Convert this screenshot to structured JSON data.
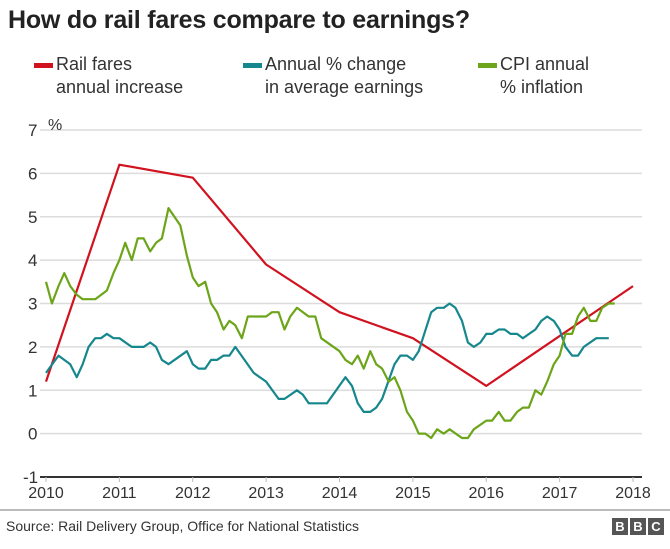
{
  "chart_data": {
    "type": "line",
    "title": "How do rail fares compare to earnings?",
    "ylabel": "%",
    "xlabel": "",
    "ylim": [
      -1,
      7
    ],
    "xlim": [
      2010,
      2018
    ],
    "yticks": [
      "-1",
      "0",
      "1",
      "2",
      "3",
      "4",
      "5",
      "6",
      "7"
    ],
    "xticks": [
      "2010",
      "2011",
      "2012",
      "2013",
      "2014",
      "2015",
      "2016",
      "2017",
      "2018"
    ],
    "grid": true,
    "legend_position": "top",
    "series": [
      {
        "name": "Rail fares\nannual increase",
        "color": "#d1121f",
        "points": [
          [
            2010.0,
            1.2
          ],
          [
            2011.0,
            6.2
          ],
          [
            2012.0,
            5.9
          ],
          [
            2013.0,
            3.9
          ],
          [
            2014.0,
            2.8
          ],
          [
            2015.0,
            2.2
          ],
          [
            2016.0,
            1.1
          ],
          [
            2018.0,
            3.4
          ]
        ]
      },
      {
        "name": "Annual % change\nin average earnings",
        "color": "#16878c",
        "points": [
          [
            2010.0,
            1.4
          ],
          [
            2010.17,
            1.8
          ],
          [
            2010.33,
            1.6
          ],
          [
            2010.42,
            1.3
          ],
          [
            2010.5,
            1.6
          ],
          [
            2010.58,
            2.0
          ],
          [
            2010.67,
            2.2
          ],
          [
            2010.75,
            2.2
          ],
          [
            2010.83,
            2.3
          ],
          [
            2010.92,
            2.2
          ],
          [
            2011.0,
            2.2
          ],
          [
            2011.17,
            2.0
          ],
          [
            2011.33,
            2.0
          ],
          [
            2011.42,
            2.1
          ],
          [
            2011.5,
            2.0
          ],
          [
            2011.58,
            1.7
          ],
          [
            2011.67,
            1.6
          ],
          [
            2011.92,
            1.9
          ],
          [
            2012.0,
            1.6
          ],
          [
            2012.08,
            1.5
          ],
          [
            2012.17,
            1.5
          ],
          [
            2012.25,
            1.7
          ],
          [
            2012.33,
            1.7
          ],
          [
            2012.42,
            1.8
          ],
          [
            2012.5,
            1.8
          ],
          [
            2012.58,
            2.0
          ],
          [
            2012.83,
            1.4
          ],
          [
            2013.0,
            1.2
          ],
          [
            2013.17,
            0.8
          ],
          [
            2013.25,
            0.8
          ],
          [
            2013.42,
            1.0
          ],
          [
            2013.5,
            0.9
          ],
          [
            2013.58,
            0.7
          ],
          [
            2013.83,
            0.7
          ],
          [
            2014.08,
            1.3
          ],
          [
            2014.17,
            1.1
          ],
          [
            2014.25,
            0.7
          ],
          [
            2014.33,
            0.5
          ],
          [
            2014.42,
            0.5
          ],
          [
            2014.5,
            0.6
          ],
          [
            2014.58,
            0.8
          ],
          [
            2014.75,
            1.6
          ],
          [
            2014.83,
            1.8
          ],
          [
            2014.92,
            1.8
          ],
          [
            2015.0,
            1.7
          ],
          [
            2015.08,
            1.9
          ],
          [
            2015.25,
            2.8
          ],
          [
            2015.33,
            2.9
          ],
          [
            2015.42,
            2.9
          ],
          [
            2015.5,
            3.0
          ],
          [
            2015.58,
            2.9
          ],
          [
            2015.67,
            2.6
          ],
          [
            2015.75,
            2.1
          ],
          [
            2015.83,
            2.0
          ],
          [
            2015.92,
            2.1
          ],
          [
            2016.0,
            2.3
          ],
          [
            2016.08,
            2.3
          ],
          [
            2016.17,
            2.4
          ],
          [
            2016.25,
            2.4
          ],
          [
            2016.33,
            2.3
          ],
          [
            2016.42,
            2.3
          ],
          [
            2016.5,
            2.2
          ],
          [
            2016.67,
            2.4
          ],
          [
            2016.75,
            2.6
          ],
          [
            2016.83,
            2.7
          ],
          [
            2016.92,
            2.6
          ],
          [
            2017.0,
            2.4
          ],
          [
            2017.08,
            2.0
          ],
          [
            2017.17,
            1.8
          ],
          [
            2017.25,
            1.8
          ],
          [
            2017.33,
            2.0
          ],
          [
            2017.5,
            2.2
          ],
          [
            2017.67,
            2.2
          ]
        ]
      },
      {
        "name": "CPI annual\n% inflation",
        "color": "#6ca51a",
        "points": [
          [
            2010.0,
            3.5
          ],
          [
            2010.08,
            3.0
          ],
          [
            2010.17,
            3.4
          ],
          [
            2010.25,
            3.7
          ],
          [
            2010.33,
            3.4
          ],
          [
            2010.42,
            3.2
          ],
          [
            2010.5,
            3.1
          ],
          [
            2010.67,
            3.1
          ],
          [
            2010.83,
            3.3
          ],
          [
            2010.92,
            3.7
          ],
          [
            2011.0,
            4.0
          ],
          [
            2011.08,
            4.4
          ],
          [
            2011.17,
            4.0
          ],
          [
            2011.25,
            4.5
          ],
          [
            2011.33,
            4.5
          ],
          [
            2011.42,
            4.2
          ],
          [
            2011.5,
            4.4
          ],
          [
            2011.58,
            4.5
          ],
          [
            2011.67,
            5.2
          ],
          [
            2011.83,
            4.8
          ],
          [
            2011.92,
            4.1
          ],
          [
            2012.0,
            3.6
          ],
          [
            2012.08,
            3.4
          ],
          [
            2012.17,
            3.5
          ],
          [
            2012.25,
            3.0
          ],
          [
            2012.33,
            2.8
          ],
          [
            2012.42,
            2.4
          ],
          [
            2012.5,
            2.6
          ],
          [
            2012.58,
            2.5
          ],
          [
            2012.67,
            2.2
          ],
          [
            2012.75,
            2.7
          ],
          [
            2013.0,
            2.7
          ],
          [
            2013.08,
            2.8
          ],
          [
            2013.17,
            2.8
          ],
          [
            2013.25,
            2.4
          ],
          [
            2013.33,
            2.7
          ],
          [
            2013.42,
            2.9
          ],
          [
            2013.58,
            2.7
          ],
          [
            2013.67,
            2.7
          ],
          [
            2013.75,
            2.2
          ],
          [
            2014.0,
            1.9
          ],
          [
            2014.08,
            1.7
          ],
          [
            2014.17,
            1.6
          ],
          [
            2014.25,
            1.8
          ],
          [
            2014.33,
            1.5
          ],
          [
            2014.42,
            1.9
          ],
          [
            2014.5,
            1.6
          ],
          [
            2014.58,
            1.5
          ],
          [
            2014.67,
            1.2
          ],
          [
            2014.75,
            1.3
          ],
          [
            2014.83,
            1.0
          ],
          [
            2014.92,
            0.5
          ],
          [
            2015.0,
            0.3
          ],
          [
            2015.08,
            0.0
          ],
          [
            2015.17,
            0.0
          ],
          [
            2015.25,
            -0.1
          ],
          [
            2015.33,
            0.1
          ],
          [
            2015.42,
            0.0
          ],
          [
            2015.5,
            0.1
          ],
          [
            2015.67,
            -0.1
          ],
          [
            2015.75,
            -0.1
          ],
          [
            2015.83,
            0.1
          ],
          [
            2016.0,
            0.3
          ],
          [
            2016.08,
            0.3
          ],
          [
            2016.17,
            0.5
          ],
          [
            2016.25,
            0.3
          ],
          [
            2016.33,
            0.3
          ],
          [
            2016.42,
            0.5
          ],
          [
            2016.5,
            0.6
          ],
          [
            2016.58,
            0.6
          ],
          [
            2016.67,
            1.0
          ],
          [
            2016.75,
            0.9
          ],
          [
            2016.83,
            1.2
          ],
          [
            2016.92,
            1.6
          ],
          [
            2017.0,
            1.8
          ],
          [
            2017.08,
            2.3
          ],
          [
            2017.17,
            2.3
          ],
          [
            2017.25,
            2.7
          ],
          [
            2017.33,
            2.9
          ],
          [
            2017.42,
            2.6
          ],
          [
            2017.5,
            2.6
          ],
          [
            2017.58,
            2.9
          ],
          [
            2017.67,
            3.0
          ],
          [
            2017.75,
            3.0
          ]
        ]
      }
    ]
  },
  "footer": {
    "source": "Source: Rail Delivery Group, Office for National Statistics",
    "logo": [
      "B",
      "B",
      "C"
    ]
  }
}
